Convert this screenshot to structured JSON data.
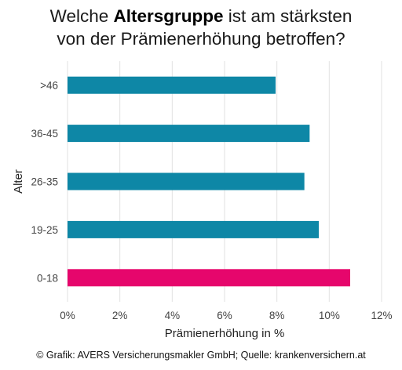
{
  "title": {
    "line1_before": "Welche ",
    "line1_bold": "Altersgruppe",
    "line1_after": " ist am stärksten",
    "line2": "von der Prämienerhöhung betroffen?"
  },
  "chart_data": {
    "type": "bar",
    "orientation": "horizontal",
    "categories": [
      ">46",
      "36-45",
      "26-35",
      "19-25",
      "0-18"
    ],
    "values": [
      7.95,
      9.25,
      9.05,
      9.6,
      10.8
    ],
    "xlabel": "Prämienerhöhung in %",
    "ylabel": "Alter",
    "xlim": [
      0,
      12
    ],
    "xticks": [
      "0%",
      "2%",
      "4%",
      "6%",
      "8%",
      "10%",
      "12%"
    ],
    "grid": true,
    "colors": {
      "default": "#0e87a6",
      "highlight": "#e6066c",
      "grid": "#e2e2e2"
    },
    "highlight_category": "0-18"
  },
  "footer": "© Grafik: AVERS Versicherungsmakler GmbH; Quelle: krankenversichern.at"
}
